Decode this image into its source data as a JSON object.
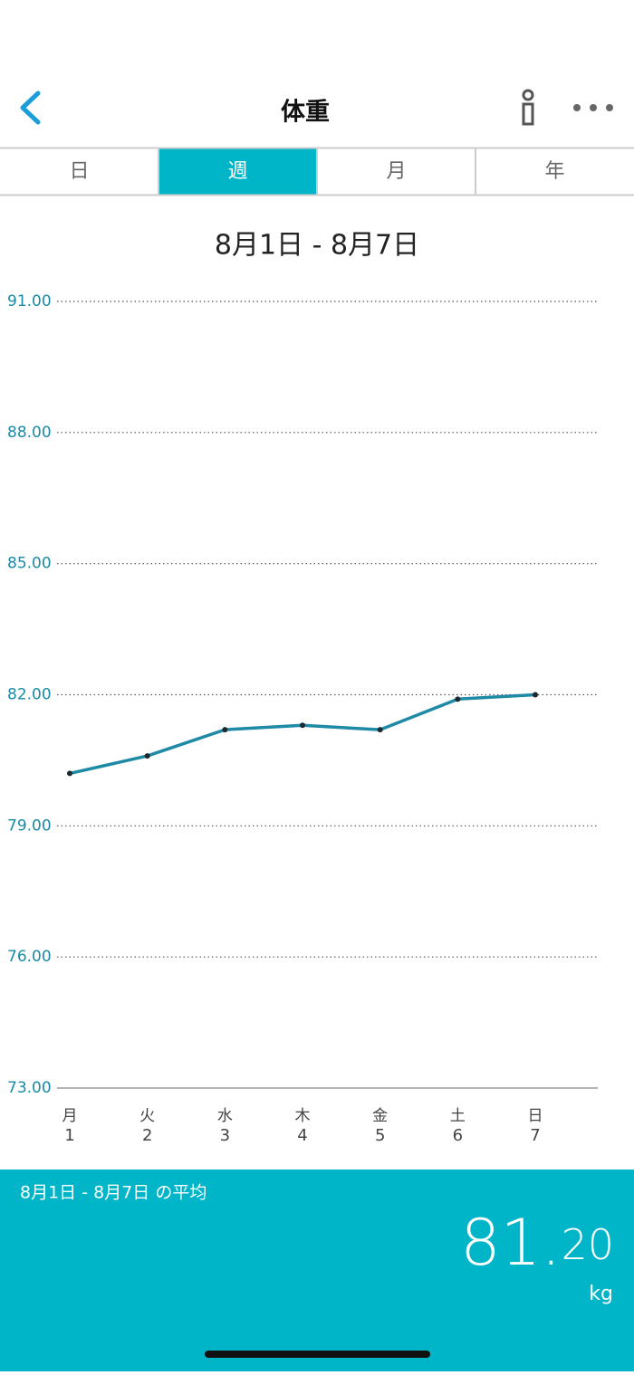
{
  "header": {
    "title": "体重"
  },
  "tabs": [
    "日",
    "週",
    "月",
    "年"
  ],
  "active_tab": 1,
  "chart_data": {
    "type": "line",
    "title": "8月1日 - 8月7日",
    "categories": [
      "月",
      "火",
      "水",
      "木",
      "金",
      "土",
      "日"
    ],
    "day_labels": [
      "1",
      "2",
      "3",
      "4",
      "5",
      "6",
      "7"
    ],
    "series": [
      {
        "name": "体重",
        "color": "#1e8aa6",
        "values": [
          80.2,
          80.6,
          81.2,
          81.3,
          81.2,
          81.9,
          82.0
        ]
      }
    ],
    "ylim": [
      73,
      91
    ],
    "yticks": [
      {
        "value": 73,
        "label": "73.00"
      },
      {
        "value": 76,
        "label": "76.00"
      },
      {
        "value": 79,
        "label": "79.00"
      },
      {
        "value": 82,
        "label": "82.00"
      },
      {
        "value": 85,
        "label": "85.00"
      },
      {
        "value": 88,
        "label": "88.00"
      },
      {
        "value": 91,
        "label": "91.00"
      }
    ],
    "grid": true
  },
  "summary": {
    "label": "8月1日 - 8月7日 の平均",
    "average_major": "81.",
    "average_minor": "20",
    "unit": "kg"
  }
}
